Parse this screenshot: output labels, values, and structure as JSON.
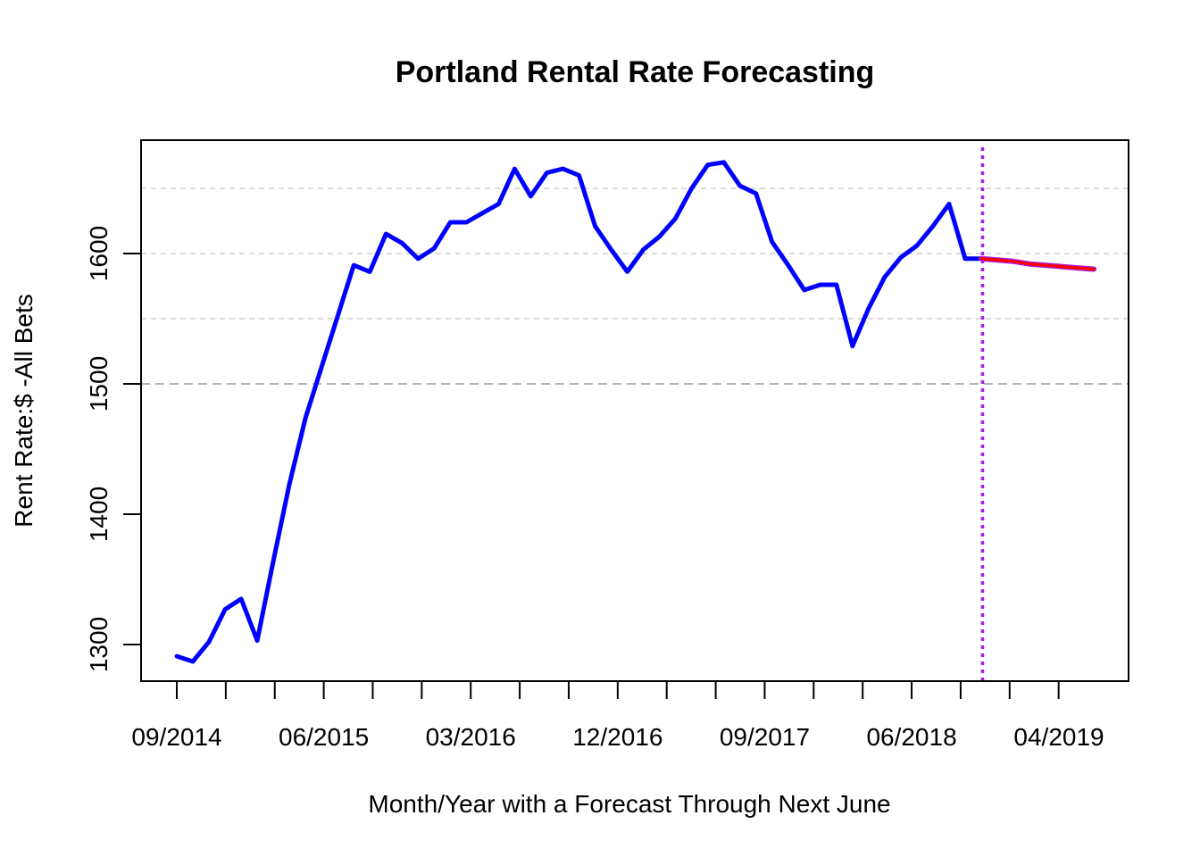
{
  "chart_data": {
    "type": "line",
    "title": "Portland Rental Rate Forecasting",
    "xlabel": "Month/Year with a Forecast Through Next June",
    "ylabel": "Rent Rate:$ -All Bets",
    "x_tick_labels": [
      "09/2014",
      "06/2015",
      "03/2016",
      "12/2016",
      "09/2017",
      "06/2018",
      "04/2019"
    ],
    "y_ticks": [
      1300,
      1400,
      1500,
      1600
    ],
    "ylim": [
      1270,
      1685
    ],
    "gridlines_dashed": [
      1500,
      1550,
      1600,
      1650
    ],
    "forecast_start": "11/2018",
    "series": [
      {
        "color": "#0000ff",
        "x": [
          "09/2014",
          "10/2014",
          "11/2014",
          "12/2014",
          "01/2015",
          "02/2015",
          "03/2015",
          "04/2015",
          "05/2015",
          "06/2015",
          "07/2015",
          "08/2015",
          "09/2015",
          "10/2015",
          "11/2015",
          "12/2015",
          "01/2016",
          "02/2016",
          "03/2016",
          "04/2016",
          "05/2016",
          "06/2016",
          "07/2016",
          "08/2016",
          "09/2016",
          "10/2016",
          "11/2016",
          "12/2016",
          "01/2017",
          "02/2017",
          "03/2017",
          "04/2017",
          "05/2017",
          "06/2017",
          "07/2017",
          "08/2017",
          "09/2017",
          "10/2017",
          "11/2017",
          "12/2017",
          "01/2018",
          "02/2018",
          "03/2018",
          "04/2018",
          "05/2018",
          "06/2018",
          "07/2018",
          "08/2018",
          "09/2018",
          "10/2018",
          "11/2018"
        ],
        "values": [
          1291,
          1287,
          1302,
          1327,
          1335,
          1303,
          1364,
          1423,
          1474,
          1513,
          1552,
          1591,
          1586,
          1615,
          1608,
          1596,
          1604,
          1624,
          1624,
          1631,
          1638,
          1665,
          1644,
          1662,
          1665,
          1660,
          1621,
          1603,
          1586,
          1603,
          1613,
          1627,
          1650,
          1668,
          1670,
          1652,
          1646,
          1609,
          1591,
          1572,
          1576,
          1576,
          1529,
          1558,
          1582,
          1597,
          1606,
          1621,
          1638,
          1596,
          1596
        ]
      },
      {
        "color": "#ff0000",
        "x": [
          "11/2018",
          "12/2018",
          "01/2019",
          "02/2019",
          "03/2019",
          "04/2019",
          "05/2019",
          "06/2019"
        ],
        "values": [
          1596,
          1595,
          1594,
          1592,
          1591,
          1590,
          1589,
          1588
        ]
      }
    ],
    "forecast_line_color": "#a020f0"
  }
}
